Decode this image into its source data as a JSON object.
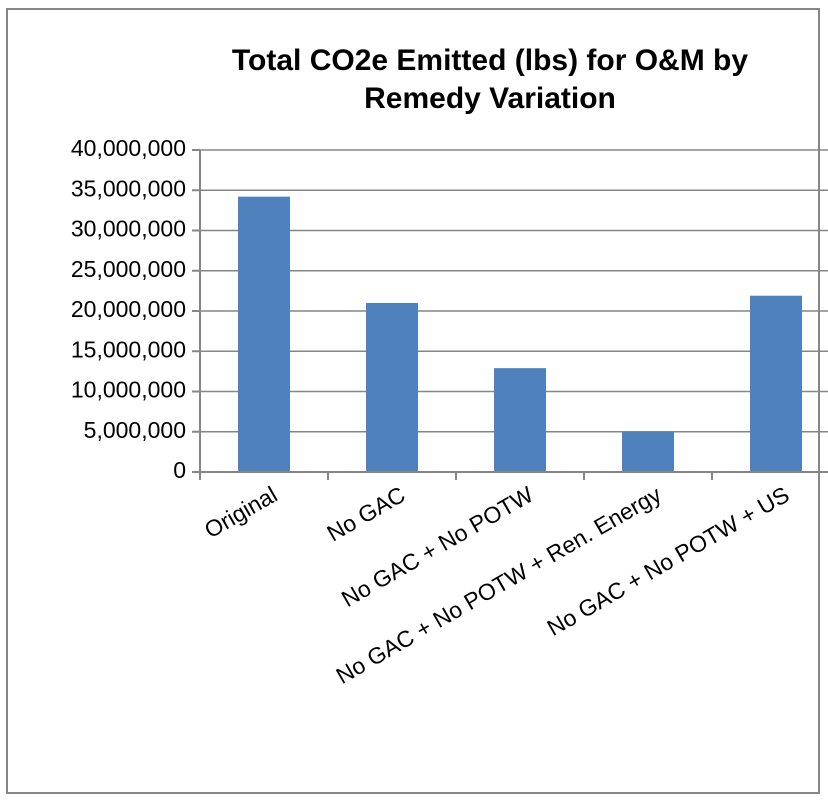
{
  "chart_data": {
    "type": "bar",
    "title": "Total CO2e Emitted (lbs) for O&M by Remedy Variation",
    "categories": [
      "Original",
      "No GAC",
      "No GAC + No POTW",
      "No GAC + No POTW + Ren. Energy",
      "No GAC + No POTW + US"
    ],
    "values": [
      34200000,
      21000000,
      12900000,
      5000000,
      21900000
    ],
    "color": "#4f81bd",
    "ylim": [
      0,
      40000000
    ],
    "yticks": [
      0,
      {
        "value": 5000000,
        "label": "5,000,000"
      },
      {
        "value": 10000000,
        "label": "10,000,000"
      },
      {
        "value": 15000000,
        "label": "15,000,000"
      },
      {
        "value": 20000000,
        "label": "20,000,000"
      },
      {
        "value": 25000000,
        "label": "25,000,000"
      },
      {
        "value": 30000000,
        "label": "30,000,000"
      },
      {
        "value": 35000000,
        "label": "35,000,000"
      },
      {
        "value": 40000000,
        "label": "40,000,000"
      }
    ],
    "grid": true
  }
}
